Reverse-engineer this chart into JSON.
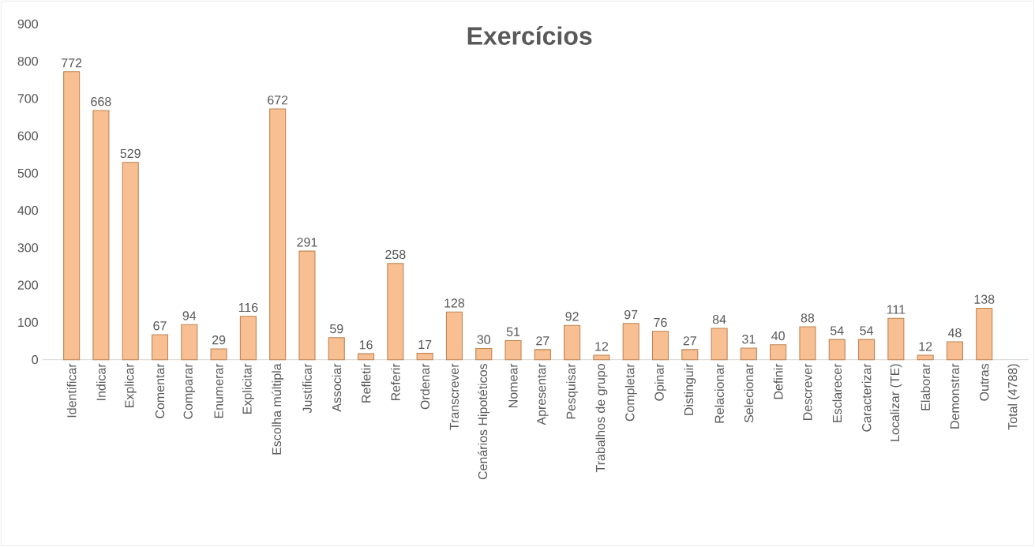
{
  "chart_data": {
    "type": "bar",
    "title": "Exercícios",
    "categories": [
      "Identificar",
      "Indicar",
      "Explicar",
      "Comentar",
      "Comparar",
      "Enumerar",
      "Explicitar",
      "Escolha múltipla",
      "Justificar",
      "Associar",
      "Refletir",
      "Referir",
      "Ordenar",
      "Transcrever",
      "Cenários Hipotéticos",
      "Nomear",
      "Apresentar",
      "Pesquisar",
      "Trabalhos de grupo",
      "Completar",
      "Opinar",
      "Distinguir",
      "Relacionar",
      "Selecionar",
      "Definir",
      "Descrever",
      "Esclarecer",
      "Caracterizar",
      "Localizar (TE)",
      "Elaborar",
      "Demonstrar",
      "Outras",
      "Total (4788)"
    ],
    "values": [
      772,
      668,
      529,
      67,
      94,
      29,
      116,
      672,
      291,
      59,
      16,
      258,
      17,
      128,
      30,
      51,
      27,
      92,
      12,
      97,
      76,
      27,
      84,
      31,
      40,
      88,
      54,
      54,
      111,
      12,
      48,
      138,
      null
    ],
    "color": "#f8bf93",
    "ylim": [
      0,
      900
    ],
    "yticks": [
      0,
      100,
      200,
      300,
      400,
      500,
      600,
      700,
      800,
      900
    ],
    "data_labels": true,
    "grid": false
  }
}
